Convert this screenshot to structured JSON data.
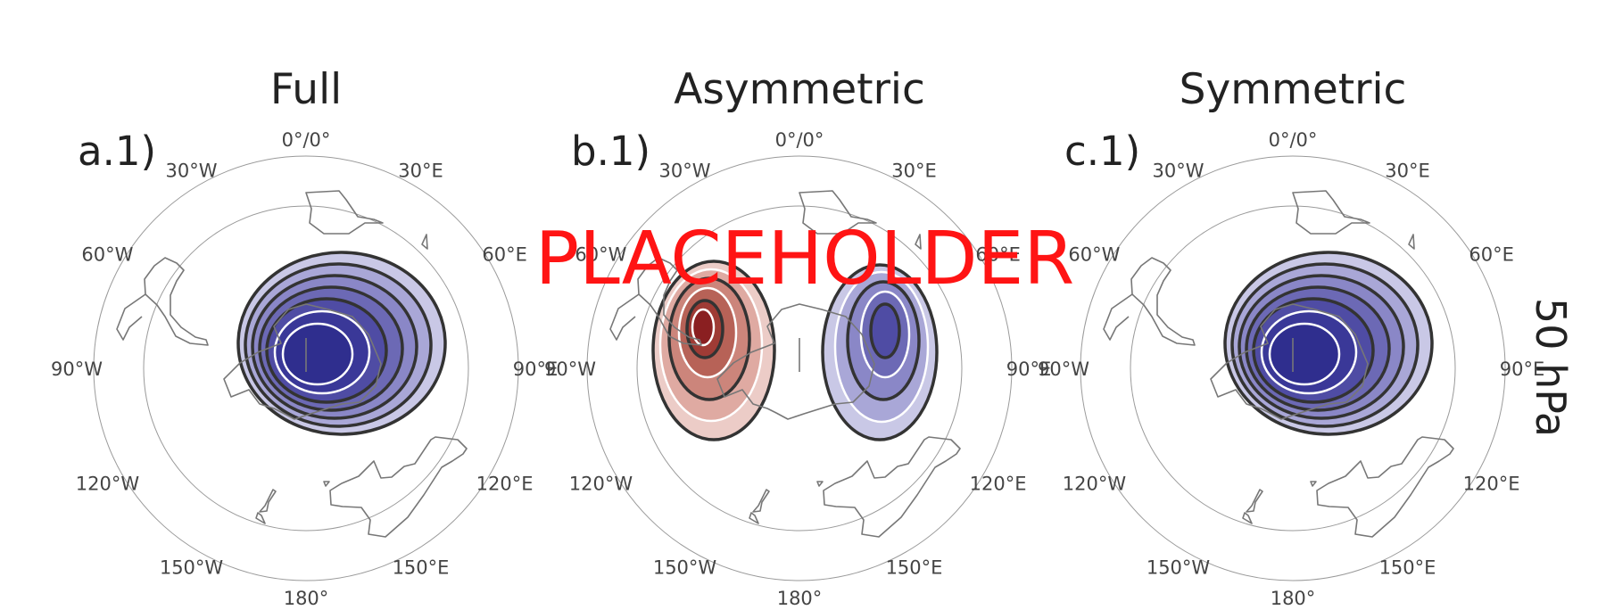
{
  "panels": [
    {
      "title": "Full",
      "label": "a.1)",
      "field": "sym",
      "lon_labels": [
        "0°/0°",
        "30°E",
        "60°E",
        "90°E",
        "120°E",
        "150°E",
        "180°",
        "150°W",
        "120°W",
        "90°W",
        "60°W",
        "30°W"
      ]
    },
    {
      "title": "Asymmetric",
      "label": "b.1)",
      "field": "dipole",
      "lon_labels": [
        "0°/0°",
        "30°E",
        "60°E",
        "90°E",
        "120°E",
        "150°E",
        "180°",
        "150°W",
        "120°W",
        "90°W",
        "60°W",
        "30°W"
      ]
    },
    {
      "title": "Symmetric",
      "label": "c.1)",
      "field": "sym",
      "lon_labels": [
        "0°/0°",
        "30°E",
        "60°E",
        "90°E",
        "120°E",
        "150°E",
        "180°",
        "150°W",
        "120°W",
        "90°W",
        "60°W",
        "30°W"
      ]
    }
  ],
  "level_label": "50 hPa",
  "overlay_text": "PLACEHOLDER",
  "colors": {
    "negative": [
      "#c9c8e6",
      "#a9a7d7",
      "#8a87c7",
      "#6c69b5",
      "#4f4ca4",
      "#3a3898",
      "#2f2e8e"
    ],
    "positive": [
      "#ecccc7",
      "#dfaaa2",
      "#cc857b",
      "#b76257",
      "#9f3b35",
      "#8a1f21"
    ],
    "overlay": "#ff1414"
  },
  "map": {
    "projection": "south-polar-stereographic",
    "meridian_step_deg": 30
  }
}
